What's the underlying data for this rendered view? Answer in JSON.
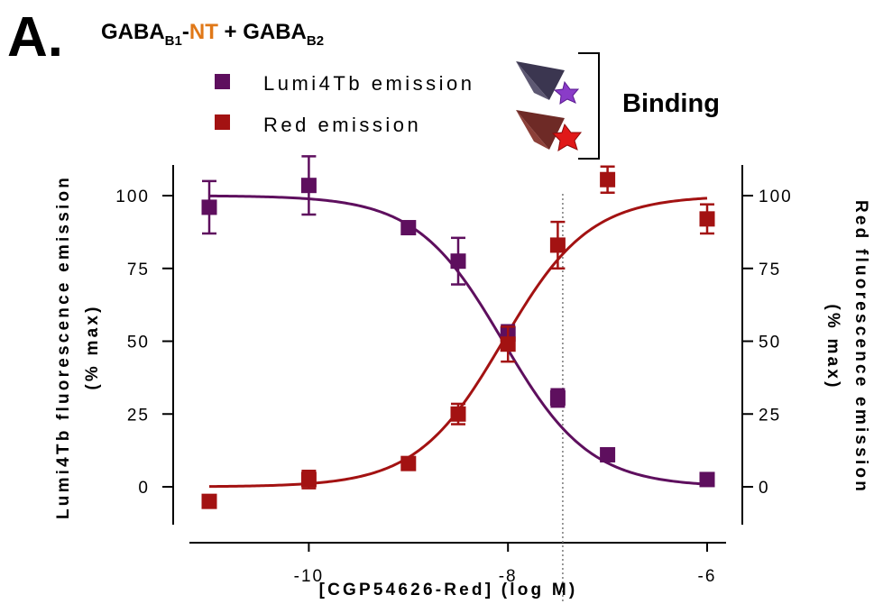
{
  "figure": {
    "panel_label": "A.",
    "title": {
      "p1": "GABA",
      "p1_sub": "B1",
      "p2": "-",
      "p3": "NT",
      "p4": " + GABA",
      "p4_sub": "B2"
    },
    "binding_label": "Binding"
  },
  "colors": {
    "lumi": "#5e0f5e",
    "red": "#a31212",
    "nt": "#e07818",
    "dotted": "#808080"
  },
  "chart_data": {
    "type": "scatter",
    "xlabel": "[CGP54626-Red] (log M)",
    "ylabel_left": [
      "Lumi4Tb fluorescence emission",
      "(% max)"
    ],
    "ylabel_right": [
      "Red fluorescence emission",
      "(% max)"
    ],
    "xlim": [
      -11,
      -6
    ],
    "ylim": [
      -10,
      110
    ],
    "x_ticks": [
      -10,
      -8,
      -6
    ],
    "x_tick_labels": [
      "-10",
      "-8",
      "-6"
    ],
    "y_ticks": [
      0,
      25,
      50,
      75,
      100
    ],
    "y_tick_labels": [
      "0",
      "25",
      "50",
      "75",
      "100"
    ],
    "reference_line_x": -7.45,
    "legend_position": "top",
    "series": [
      {
        "name": "Lumi4Tb emission",
        "color": "#5e0f5e",
        "axis": "left",
        "x": [
          -11,
          -10,
          -9,
          -8.5,
          -8,
          -7.5,
          -7,
          -6
        ],
        "y": [
          96,
          103.5,
          89,
          77.5,
          52.5,
          30.5,
          11,
          2.5
        ],
        "err": [
          9,
          10,
          1,
          8,
          3,
          3,
          1.5,
          2
        ],
        "fit": {
          "top": 100,
          "bottom": 0,
          "logEC50": -8.05,
          "hill": -1
        }
      },
      {
        "name": "Red emission",
        "color": "#a31212",
        "axis": "right",
        "x": [
          -11,
          -10,
          -9,
          -8.5,
          -8,
          -7.5,
          -7,
          -6
        ],
        "y": [
          -5,
          2.5,
          8,
          25,
          49,
          83,
          105.5,
          92
        ],
        "err": [
          1,
          3,
          1.5,
          3.5,
          6,
          8,
          4.5,
          5
        ],
        "fit": {
          "top": 100,
          "bottom": 0,
          "logEC50": -8.05,
          "hill": 1
        }
      }
    ]
  }
}
